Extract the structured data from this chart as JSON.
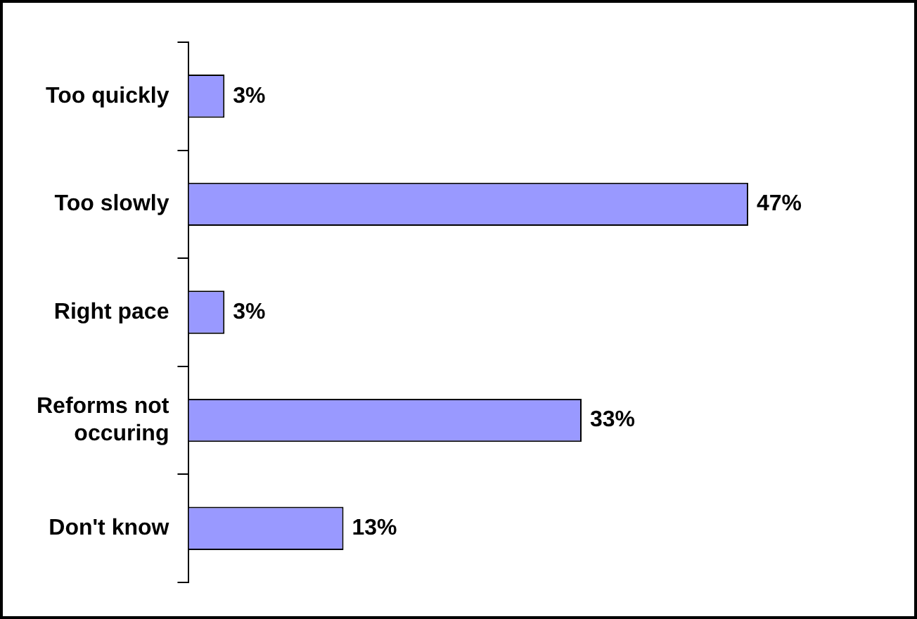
{
  "chart_data": {
    "type": "bar",
    "orientation": "horizontal",
    "categories": [
      "Too quickly",
      "Too slowly",
      "Right pace",
      "Reforms not occuring",
      "Don't know"
    ],
    "values": [
      3,
      47,
      3,
      33,
      13
    ],
    "value_labels": [
      "3%",
      "47%",
      "3%",
      "33%",
      "13%"
    ],
    "color": "#9999ff",
    "legend": false
  }
}
